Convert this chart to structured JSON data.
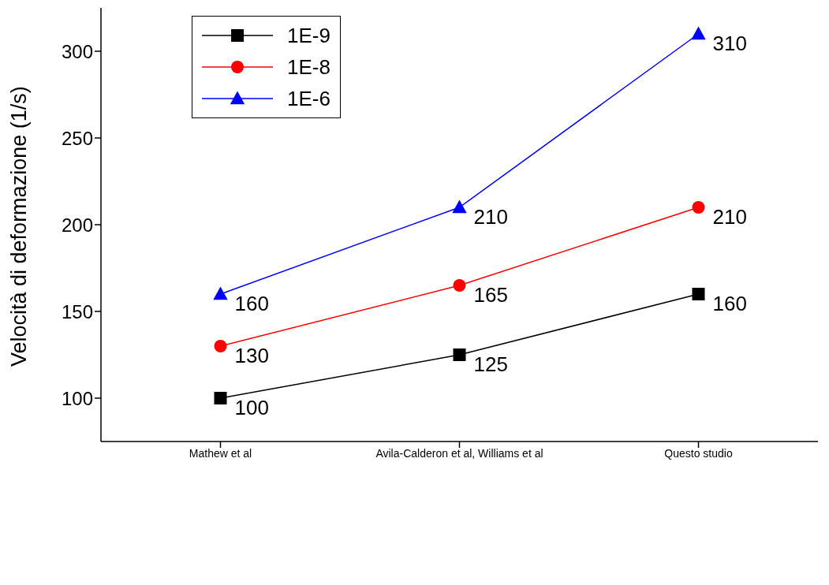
{
  "chart_data": {
    "type": "line",
    "ylabel": "Velocità di deformazione (1/s)",
    "categories": [
      "Mathew et al",
      "Avila-Calderon et al, Williams et al",
      "Questo studio"
    ],
    "series": [
      {
        "name": "1E-9",
        "color": "#000000",
        "marker": "square",
        "values": [
          100,
          125,
          160
        ]
      },
      {
        "name": "1E-8",
        "color": "#ff0000",
        "marker": "circle",
        "values": [
          130,
          165,
          210
        ]
      },
      {
        "name": "1E-6",
        "color": "#0000ff",
        "marker": "triangle",
        "values": [
          160,
          210,
          310
        ]
      }
    ],
    "ylim": [
      75,
      325
    ],
    "yticks": [
      100,
      150,
      200,
      250,
      300
    ],
    "grid": false,
    "legend": "top left",
    "data_labels": true
  }
}
